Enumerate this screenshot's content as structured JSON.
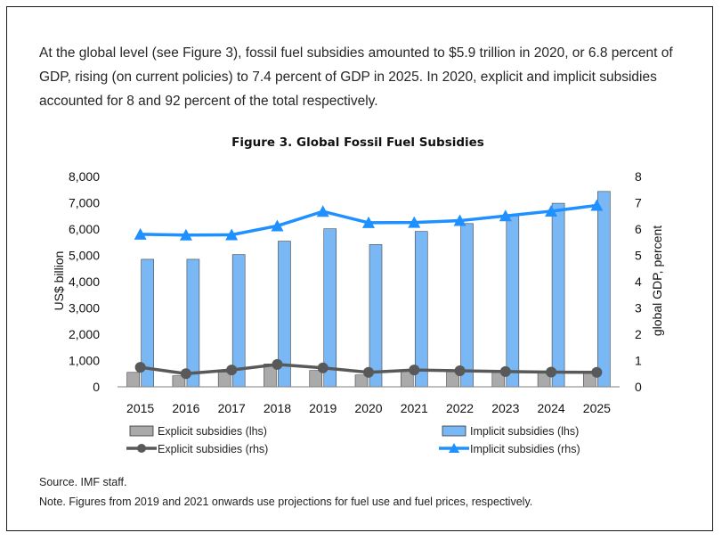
{
  "intro_text": "At the global level (see Figure 3), fossil fuel subsidies amounted to $5.9 trillion in 2020, or 6.8 percent of GDP, rising (on current policies) to 7.4 percent of GDP in 2025. In 2020, explicit and implicit subsidies accounted for 8 and 92 percent of the total respectively.",
  "source": "Source. IMF staff.",
  "note": "Note. Figures from 2019 and 2021 onwards use projections for fuel use and fuel prices, respectively.",
  "colors": {
    "explicit_bar": "#aaaaaa",
    "implicit_bar": "#7ab8f5",
    "explicit_line": "#595959",
    "implicit_line": "#1e90ff"
  },
  "chart_data": {
    "type": "bar",
    "title": "Figure 3. Global Fossil Fuel Subsidies",
    "ylabel": "US$ billion",
    "y2label": "global GDP, percent",
    "ylim": [
      0,
      8000
    ],
    "y2lim": [
      0,
      8
    ],
    "yticks": [
      "0",
      "1,000",
      "2,000",
      "3,000",
      "4,000",
      "5,000",
      "6,000",
      "7,000",
      "8,000"
    ],
    "y2ticks": [
      "0",
      "1",
      "2",
      "3",
      "4",
      "5",
      "6",
      "7",
      "8"
    ],
    "categories": [
      "2015",
      "2016",
      "2017",
      "2018",
      "2019",
      "2020",
      "2021",
      "2022",
      "2023",
      "2024",
      "2025"
    ],
    "grid": false,
    "legend_position": "bottom",
    "series": [
      {
        "name": "Explicit subsidies (lhs)",
        "kind": "bar",
        "axis": "left",
        "values": [
          550,
          420,
          560,
          870,
          620,
          450,
          600,
          570,
          550,
          560,
          540
        ]
      },
      {
        "name": "Implicit subsidies (lhs)",
        "kind": "bar",
        "axis": "left",
        "values": [
          4850,
          4850,
          5030,
          5540,
          6010,
          5410,
          5910,
          6210,
          6500,
          6980,
          7430
        ]
      },
      {
        "name": "Explicit subsidies (rhs)",
        "kind": "line",
        "axis": "right",
        "values": [
          0.74,
          0.5,
          0.64,
          0.85,
          0.72,
          0.55,
          0.64,
          0.61,
          0.58,
          0.56,
          0.55
        ]
      },
      {
        "name": "Implicit subsidies (rhs)",
        "kind": "line",
        "axis": "right",
        "values": [
          5.8,
          5.77,
          5.78,
          6.12,
          6.67,
          6.24,
          6.25,
          6.32,
          6.5,
          6.68,
          6.9
        ]
      }
    ]
  }
}
